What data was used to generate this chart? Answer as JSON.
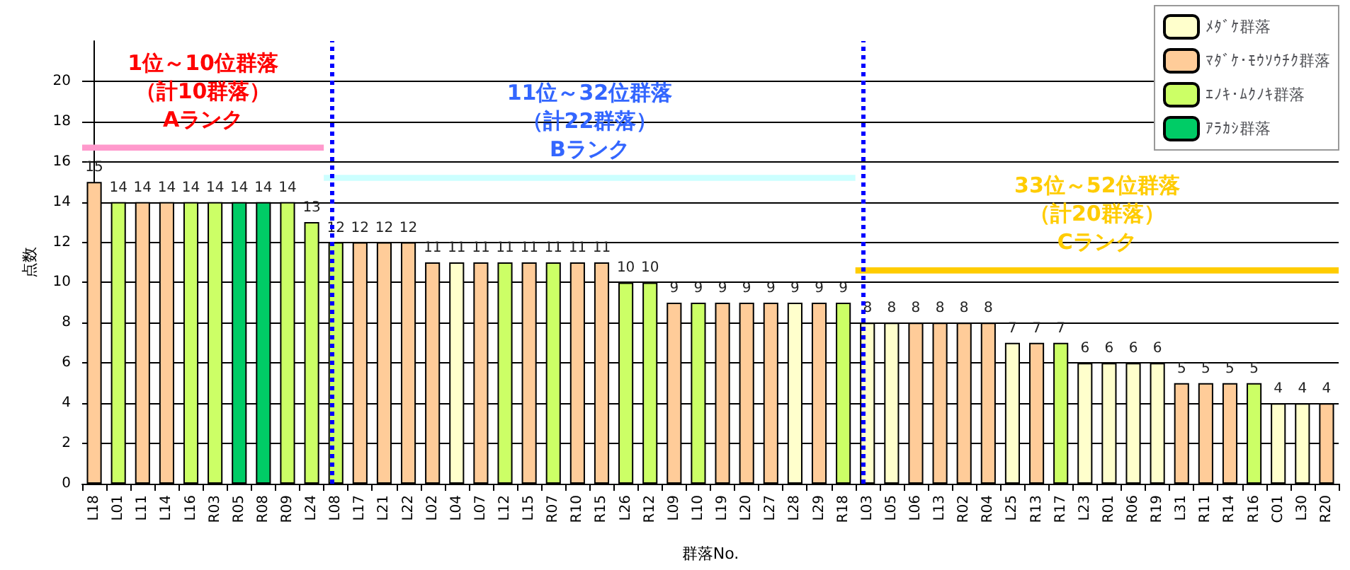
{
  "chart_data": {
    "type": "bar",
    "xlabel": "群落No.",
    "ylabel": "点数",
    "categories": [
      "L18",
      "L01",
      "L11",
      "L14",
      "L16",
      "R03",
      "R05",
      "R08",
      "R09",
      "L24",
      "L08",
      "L17",
      "L21",
      "L22",
      "L02",
      "L04",
      "L07",
      "L12",
      "L15",
      "R07",
      "R10",
      "R15",
      "L26",
      "R12",
      "L09",
      "L10",
      "L19",
      "L20",
      "L27",
      "L28",
      "L29",
      "R18",
      "L03",
      "L05",
      "L06",
      "L13",
      "R02",
      "R04",
      "L25",
      "R13",
      "R17",
      "L23",
      "R01",
      "R06",
      "R19",
      "L31",
      "R11",
      "R14",
      "R16",
      "C01",
      "L30",
      "R20"
    ],
    "series": [
      {
        "name": "ﾒﾀﾞｹ群落",
        "color": "#ffffcc",
        "values": [
          null,
          null,
          null,
          null,
          null,
          null,
          null,
          null,
          null,
          null,
          null,
          null,
          null,
          null,
          null,
          11,
          null,
          null,
          null,
          null,
          null,
          null,
          null,
          null,
          null,
          null,
          null,
          null,
          null,
          9,
          null,
          null,
          8,
          8,
          null,
          null,
          null,
          null,
          7,
          null,
          null,
          6,
          6,
          6,
          6,
          null,
          null,
          null,
          null,
          4,
          4,
          null
        ]
      },
      {
        "name": "ﾏﾀﾞｹ･ﾓｳｿｳﾁｸ群落",
        "color": "#ffcc99",
        "values": [
          15,
          null,
          14,
          14,
          null,
          null,
          null,
          null,
          null,
          null,
          null,
          12,
          12,
          12,
          11,
          null,
          11,
          null,
          11,
          null,
          11,
          11,
          null,
          null,
          9,
          null,
          9,
          9,
          9,
          null,
          9,
          null,
          null,
          null,
          8,
          8,
          8,
          8,
          null,
          7,
          null,
          null,
          null,
          null,
          null,
          5,
          5,
          5,
          null,
          null,
          null,
          4
        ]
      },
      {
        "name": "ｴﾉｷ･ﾑｸﾉｷ群落",
        "color": "#ccff66",
        "values": [
          null,
          14,
          null,
          null,
          14,
          14,
          null,
          null,
          14,
          13,
          12,
          null,
          null,
          null,
          null,
          null,
          null,
          11,
          null,
          11,
          null,
          null,
          10,
          10,
          null,
          9,
          null,
          null,
          null,
          null,
          null,
          9,
          null,
          null,
          null,
          null,
          null,
          null,
          null,
          null,
          7,
          null,
          null,
          null,
          null,
          null,
          null,
          null,
          5,
          null,
          null,
          null
        ]
      },
      {
        "name": "ｱﾗｶｼ群落",
        "color": "#00cc66",
        "values": [
          null,
          null,
          null,
          null,
          null,
          null,
          14,
          14,
          null,
          null,
          null,
          null,
          null,
          null,
          null,
          null,
          null,
          null,
          null,
          null,
          null,
          null,
          null,
          null,
          null,
          null,
          null,
          null,
          null,
          null,
          null,
          null,
          null,
          null,
          null,
          null,
          null,
          null,
          null,
          null,
          null,
          null,
          null,
          null,
          null,
          null,
          null,
          null,
          null,
          null,
          null,
          null
        ]
      }
    ],
    "bands": [
      {
        "axis": "y",
        "from": 16.55,
        "to": 16.85,
        "color": "#ff99cc",
        "label": "1位～10位群落（計10群落）Aランク"
      },
      {
        "axis": "y",
        "from": 15.05,
        "to": 15.35,
        "color": "#ccffff",
        "label": "11位～32位群落（計22群落）Bランク"
      },
      {
        "axis": "y",
        "from": 10.45,
        "to": 10.75,
        "color": "#ffcc00",
        "label": "33位～52位群落（計20群落）Cランク"
      }
    ],
    "ref_lines": [
      {
        "axis": "x",
        "value": "L08",
        "color": "#0000ff",
        "line_style": "dotted"
      },
      {
        "axis": "x",
        "value": "L03",
        "color": "#0000ff",
        "line_style": "dotted"
      }
    ],
    "ylim": [
      0,
      22
    ],
    "yticks": [
      0,
      2,
      4,
      6,
      8,
      10,
      12,
      14,
      16,
      18,
      20
    ],
    "grid": "y",
    "legend": "top right",
    "data_labels": true
  }
}
